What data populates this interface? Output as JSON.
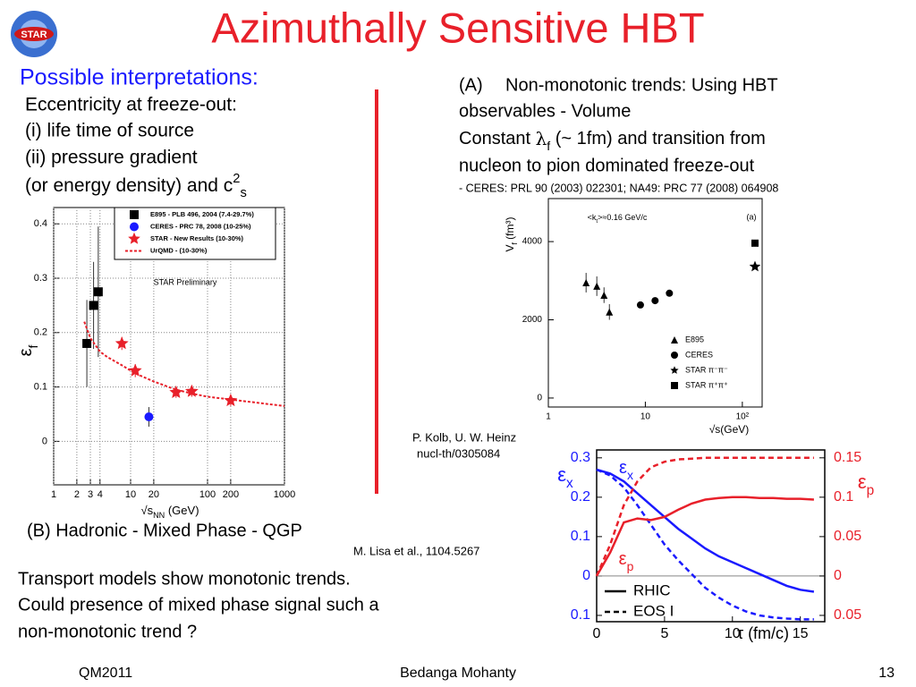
{
  "logo": "STAR",
  "title": "Azimuthally Sensitive HBT",
  "heading": "Possible interpretations:",
  "left_lines": [
    "Eccentricity at freeze-out:",
    "(i) life time of source",
    "(ii) pressure gradient",
    {
      "text": "(or energy density) and c",
      "sup": "2",
      "sub": "s"
    }
  ],
  "right_block": {
    "label": "(A)",
    "line1": "Non-monotonic trends: Using HBT",
    "line2": "observables - Volume",
    "line3": {
      "before": "Constant ",
      "symbol": "λ",
      "sub": "f",
      "after": " (~ 1fm) and transition from"
    },
    "line4": "nucleon to pion dominated freeze-out",
    "reference": "- CERES: PRL 90 (2003) 022301; NA49: PRC 77 (2008) 064908"
  },
  "credit_kolb": [
    "P. Kolb, U. W. Heinz",
    "nucl-th/0305084"
  ],
  "section_b": "(B) Hadronic - Mixed Phase - QGP",
  "credit_lisa": "M. Lisa et al., 1104.5267",
  "conclusion": [
    "Transport models show monotonic trends.",
    "Could presence of mixed phase signal such a",
    "non-monotonic trend ?"
  ],
  "footer": {
    "left": "QM2011",
    "center": "Bedanga Mohanty",
    "right": "13"
  },
  "chart_data": [
    {
      "type": "scatter",
      "x_scale": "log",
      "grid": true,
      "x_label": {
        "text": "√s",
        "sub": "NN",
        "after": " (GeV)"
      },
      "y_label": {
        "text": "ε",
        "sub": "f"
      },
      "annotations": [
        "STAR Preliminary"
      ],
      "xlim": [
        1,
        1000
      ],
      "xticks": [
        1,
        2,
        3,
        4,
        10,
        20,
        100,
        200,
        1000
      ],
      "ylim": [
        -0.08,
        0.43
      ],
      "yticks": [
        0,
        0.1,
        0.2,
        0.3,
        0.4
      ],
      "series": [
        {
          "name": "E895 - PLB 496, 2004 (7.4-29.7%)",
          "color": "#000000",
          "marker": "square",
          "x": [
            2.7,
            3.3,
            3.8
          ],
          "values": [
            0.18,
            0.25,
            0.275
          ],
          "errors": [
            0.08,
            0.08,
            0.12
          ]
        },
        {
          "name": "CERES - PRC 78, 2008 (10-25%)",
          "color": "#1a1aff",
          "marker": "circle",
          "x": [
            17.3
          ],
          "values": [
            0.045
          ],
          "errors": [
            0.018
          ]
        },
        {
          "name": "STAR - New Results (10-30%)",
          "color": "#e8202a",
          "marker": "star",
          "x": [
            7.7,
            11.5,
            39,
            62.4,
            200
          ],
          "values": [
            0.18,
            0.13,
            0.09,
            0.092,
            0.075
          ],
          "errors": [
            0.012,
            0.012,
            0.01,
            0.01,
            0.01
          ]
        },
        {
          "name": "UrQMD - (10-30%)",
          "color": "#e8202a",
          "marker": "dashed-line",
          "x": [
            2.5,
            3,
            4,
            5,
            7.7,
            11.5,
            20,
            39,
            62.4,
            100,
            200,
            500,
            1000
          ],
          "values": [
            0.22,
            0.19,
            0.165,
            0.155,
            0.14,
            0.125,
            0.11,
            0.095,
            0.088,
            0.082,
            0.077,
            0.07,
            0.065
          ]
        }
      ]
    },
    {
      "type": "scatter",
      "x_scale": "log",
      "grid": false,
      "x_label": {
        "text": "√s(GeV)"
      },
      "y_label": {
        "text": "V",
        "sub": "f",
        "after": " (fm³)"
      },
      "annotations": [
        {
          "text": "<k",
          "sub": "t",
          "after": ">≈0.16 GeV/c"
        },
        "(a)"
      ],
      "xlim": [
        1,
        160
      ],
      "xticks": [
        1,
        10,
        {
          "value": 100,
          "label": "10²"
        }
      ],
      "ylim": [
        -230,
        5100
      ],
      "yticks": [
        0,
        2000,
        4000
      ],
      "series": [
        {
          "name": "E895",
          "color": "#000000",
          "marker": "triangle",
          "x": [
            2.45,
            3.16,
            3.75,
            4.26
          ],
          "values": [
            2950,
            2860,
            2630,
            2200
          ],
          "errors": [
            250,
            250,
            200,
            200
          ]
        },
        {
          "name": "CERES",
          "color": "#000000",
          "marker": "circle",
          "x": [
            8.9,
            12.6,
            17.7
          ],
          "values": [
            2380,
            2490,
            2680
          ]
        },
        {
          "name": "STAR π⁻π⁻",
          "color": "#000000",
          "marker": "star",
          "x": [
            135
          ],
          "values": [
            3360
          ]
        },
        {
          "name": "STAR π⁺π⁺",
          "color": "#000000",
          "marker": "square",
          "x": [
            135
          ],
          "values": [
            3960
          ]
        }
      ]
    },
    {
      "type": "line",
      "grid": false,
      "x_label": {
        "text": "τ",
        "after": " (fm/c)"
      },
      "y_label": {
        "text": "ε",
        "sub": "x"
      },
      "y2_label": {
        "text": "ε",
        "sub": "p"
      },
      "annotations": [
        {
          "text": "ε",
          "sub": "x"
        },
        {
          "text": "ε",
          "sub": "p"
        }
      ],
      "legend": [
        {
          "label": "RHIC",
          "dash": "solid"
        },
        {
          "label": "EOS I",
          "dash": "dashed"
        }
      ],
      "x": [
        0,
        1,
        2,
        3,
        4,
        5,
        6,
        7,
        8,
        9,
        10,
        11,
        12,
        13,
        14,
        15,
        16
      ],
      "xlim": [
        0,
        16.8
      ],
      "xticks": [
        0,
        5,
        10,
        15
      ],
      "ylim": [
        -0.116,
        0.32
      ],
      "yticks": [
        {
          "value": -0.1,
          "label": "0.1"
        },
        0,
        0.1,
        0.2,
        0.3
      ],
      "y2lim": [
        -0.058,
        0.16
      ],
      "y2ticks": [
        {
          "value": -0.05,
          "label": "0.05"
        },
        0,
        0.05,
        0.1,
        0.15
      ],
      "series": [
        {
          "color": "#1a1aff",
          "dash": "solid",
          "axis": "y",
          "values": [
            0.27,
            0.26,
            0.24,
            0.21,
            0.18,
            0.15,
            0.12,
            0.095,
            0.07,
            0.05,
            0.035,
            0.02,
            0.005,
            -0.01,
            -0.025,
            -0.035,
            -0.04
          ]
        },
        {
          "color": "#1a1aff",
          "dash": "dashed",
          "axis": "y",
          "values": [
            0.27,
            0.255,
            0.225,
            0.18,
            0.13,
            0.08,
            0.04,
            0.005,
            -0.03,
            -0.055,
            -0.075,
            -0.09,
            -0.1,
            -0.105,
            -0.108,
            -0.11,
            -0.11
          ]
        },
        {
          "color": "#e8202a",
          "dash": "solid",
          "axis": "y2",
          "values": [
            0,
            0.03,
            0.068,
            0.073,
            0.071,
            0.075,
            0.084,
            0.092,
            0.097,
            0.099,
            0.1,
            0.1,
            0.099,
            0.099,
            0.098,
            0.098,
            0.097
          ]
        },
        {
          "color": "#e8202a",
          "dash": "dashed",
          "axis": "y2",
          "values": [
            0,
            0.04,
            0.09,
            0.12,
            0.138,
            0.145,
            0.148,
            0.149,
            0.15,
            0.15,
            0.15,
            0.15,
            0.15,
            0.15,
            0.15,
            0.15,
            0.15
          ]
        }
      ]
    }
  ]
}
